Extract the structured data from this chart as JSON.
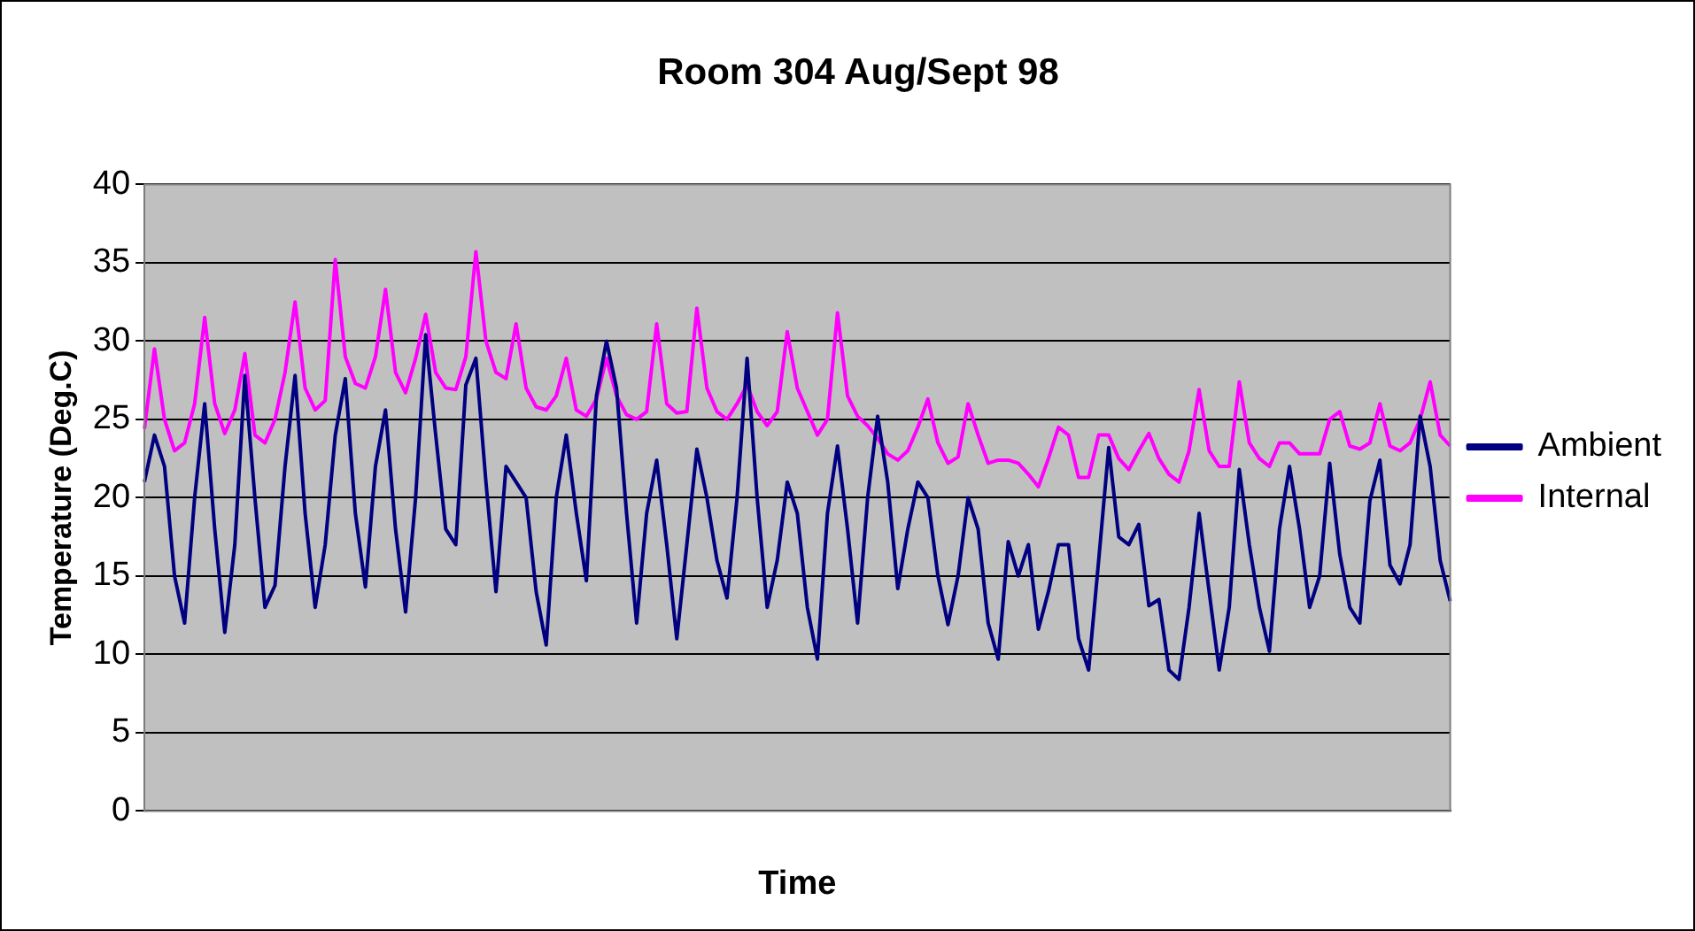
{
  "chart_data": {
    "type": "line",
    "title": "Room 304 Aug/Sept 98",
    "xlabel": "Time",
    "ylabel": "Temperature (Deg.C)",
    "categories": [
      null,
      null,
      null,
      null,
      null,
      null,
      null,
      null,
      null,
      null,
      null,
      null,
      null,
      null,
      null,
      null,
      null,
      null,
      null,
      null,
      null,
      null,
      null,
      null,
      null,
      null,
      null,
      null,
      null,
      null,
      null,
      null,
      null,
      null,
      null,
      null,
      null,
      null,
      null,
      null,
      null,
      null,
      null,
      null,
      null,
      null,
      null,
      null,
      null,
      null,
      null,
      null,
      null,
      null,
      null,
      null,
      null,
      null,
      null,
      null,
      null,
      null,
      null,
      null,
      null,
      null,
      null,
      null,
      null,
      null,
      null,
      null,
      null,
      null,
      null,
      null,
      null,
      null,
      null,
      null,
      null,
      null,
      null,
      null,
      null,
      null,
      null,
      null,
      null,
      null,
      null,
      null,
      null,
      null,
      null,
      null,
      null,
      null,
      null,
      null,
      null,
      null,
      null,
      null,
      null,
      null,
      null,
      null,
      null,
      null,
      null,
      null,
      null,
      null,
      null,
      null,
      null,
      null,
      null,
      null,
      null,
      null,
      null,
      null,
      null,
      null,
      null,
      null,
      null,
      null,
      null
    ],
    "series": [
      {
        "name": "Ambient",
        "color": "#000080",
        "values": [
          21,
          24,
          22,
          15,
          12,
          20,
          26,
          18,
          11.4,
          17,
          27.8,
          20,
          13,
          14.4,
          22,
          27.8,
          19,
          13,
          17,
          24,
          27.6,
          19,
          14.3,
          22,
          25.6,
          18,
          12.7,
          20,
          30.4,
          24,
          18,
          17,
          27.2,
          28.9,
          21,
          14,
          22,
          21,
          20,
          14,
          10.6,
          20,
          24,
          19,
          14.7,
          26.5,
          30,
          27,
          19,
          12,
          19,
          22.4,
          17,
          11,
          17,
          23.1,
          20,
          16,
          13.6,
          20,
          28.9,
          20,
          13,
          16,
          21,
          19,
          13,
          9.7,
          19,
          23.3,
          18,
          12,
          20,
          25.2,
          21,
          14.2,
          18,
          21,
          20,
          15,
          11.9,
          15,
          20,
          18,
          12,
          9.7,
          17.2,
          15,
          17,
          11.6,
          14,
          17,
          17,
          11,
          9,
          16,
          23.2,
          17.5,
          17,
          18.3,
          13.1,
          13.5,
          9,
          8.4,
          13,
          19,
          14,
          9,
          13,
          21.8,
          17,
          13,
          10.2,
          18,
          22,
          18,
          13,
          15,
          22.2,
          16.4,
          13,
          12,
          19.8,
          22.4,
          15.7,
          14.5,
          17,
          25.2,
          22,
          16,
          13.4
        ]
      },
      {
        "name": "Internal",
        "color": "#ff00ff",
        "values": [
          24.4,
          29.5,
          25,
          23,
          23.5,
          26,
          31.5,
          26,
          24.1,
          25.6,
          29.2,
          24,
          23.5,
          25,
          28,
          32.5,
          27,
          25.6,
          26.2,
          35.2,
          29,
          27.3,
          27,
          29,
          33.3,
          28,
          26.7,
          28.9,
          31.7,
          28,
          27,
          26.9,
          29,
          35.7,
          30,
          28,
          27.6,
          31.1,
          27,
          25.8,
          25.6,
          26.5,
          28.9,
          25.6,
          25.2,
          26.3,
          28.9,
          26.5,
          25.3,
          25,
          25.5,
          31.1,
          26,
          25.4,
          25.5,
          32.1,
          27,
          25.5,
          25,
          26,
          27.2,
          25.5,
          24.6,
          25.5,
          30.6,
          27,
          25.5,
          24,
          25,
          31.8,
          26.5,
          25.2,
          24.6,
          23.8,
          22.8,
          22.4,
          23,
          24.5,
          26.3,
          23.5,
          22.2,
          22.6,
          26,
          24,
          22.2,
          22.4,
          22.4,
          22.2,
          21.5,
          20.7,
          22.5,
          24.5,
          24,
          21.3,
          21.3,
          24,
          24,
          22.5,
          21.8,
          23,
          24.1,
          22.5,
          21.5,
          21,
          23,
          26.9,
          23,
          22,
          22,
          27.4,
          23.5,
          22.5,
          22,
          23.5,
          23.5,
          22.8,
          22.8,
          22.8,
          25,
          25.5,
          23.3,
          23.1,
          23.5,
          26,
          23.3,
          23,
          23.5,
          25,
          27.4,
          24,
          23.3
        ]
      }
    ],
    "ylim": [
      0,
      40
    ],
    "yticks": [
      0,
      5,
      10,
      15,
      20,
      25,
      30,
      35,
      40
    ],
    "grid": "y",
    "legend": "right"
  }
}
